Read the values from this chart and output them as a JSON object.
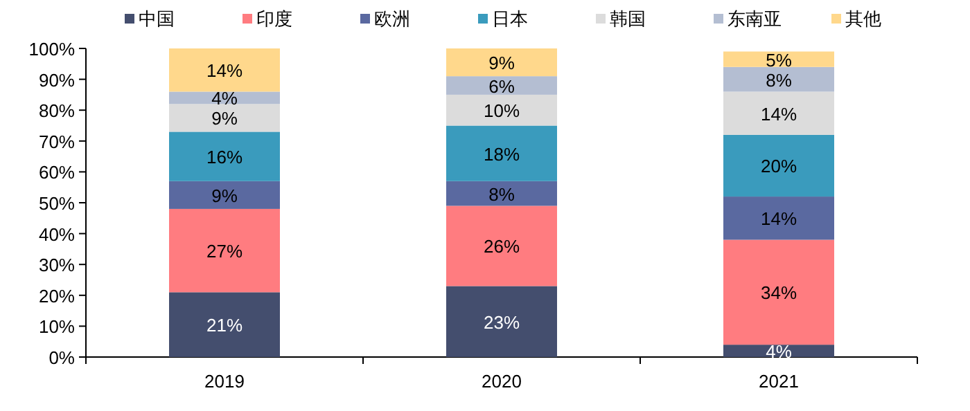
{
  "chart_data": {
    "type": "bar",
    "stacked": true,
    "categories": [
      "2019",
      "2020",
      "2021"
    ],
    "series": [
      {
        "name": "中国",
        "color": "#444e6e",
        "values": [
          21,
          23,
          4
        ],
        "value_labels": [
          "21%",
          "23%",
          "4%"
        ]
      },
      {
        "name": "印度",
        "color": "#ff7c80",
        "values": [
          27,
          26,
          34
        ],
        "value_labels": [
          "27%",
          "26%",
          "34%"
        ]
      },
      {
        "name": "欧洲",
        "color": "#5a69a0",
        "values": [
          9,
          8,
          14
        ],
        "value_labels": [
          "9%",
          "8%",
          "14%"
        ]
      },
      {
        "name": "日本",
        "color": "#3a9bbd",
        "values": [
          16,
          18,
          20
        ],
        "value_labels": [
          "16%",
          "18%",
          "20%"
        ]
      },
      {
        "name": "韩国",
        "color": "#dcdcdc",
        "values": [
          9,
          10,
          14
        ],
        "value_labels": [
          "9%",
          "10%",
          "14%"
        ]
      },
      {
        "name": "东南亚",
        "color": "#b4bed2",
        "values": [
          4,
          6,
          8
        ],
        "value_labels": [
          "4%",
          "6%",
          "8%"
        ]
      },
      {
        "name": "其他",
        "color": "#ffd88c",
        "values": [
          14,
          9,
          5
        ],
        "value_labels": [
          "14%",
          "9%",
          "5%"
        ]
      }
    ],
    "ylim": [
      0,
      100
    ],
    "yticks": [
      {
        "value": 0,
        "label": "0%"
      },
      {
        "value": 10,
        "label": "10%"
      },
      {
        "value": 20,
        "label": "20%"
      },
      {
        "value": 30,
        "label": "30%"
      },
      {
        "value": 40,
        "label": "40%"
      },
      {
        "value": 50,
        "label": "50%"
      },
      {
        "value": 60,
        "label": "60%"
      },
      {
        "value": 70,
        "label": "70%"
      },
      {
        "value": 80,
        "label": "80%"
      },
      {
        "value": 90,
        "label": "90%"
      },
      {
        "value": 100,
        "label": "100%"
      }
    ],
    "legend": "top"
  }
}
